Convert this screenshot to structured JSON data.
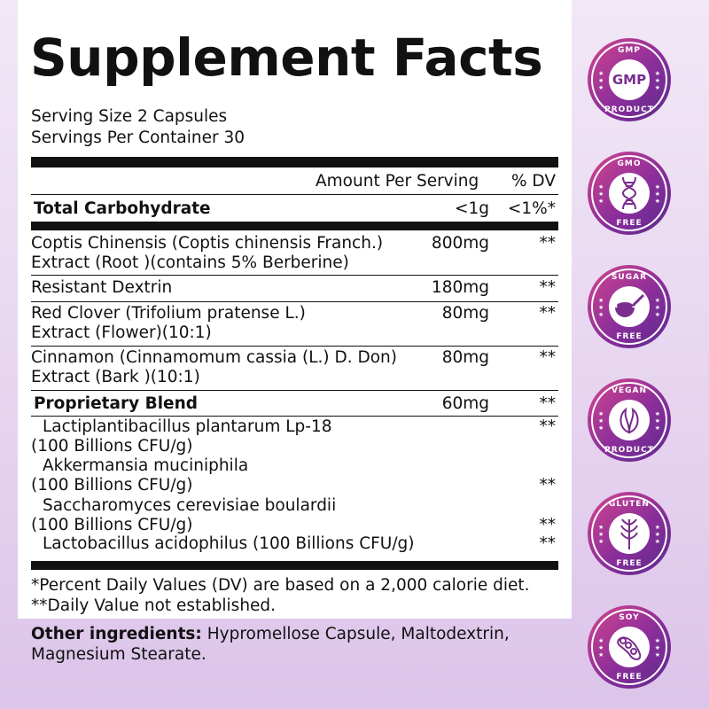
{
  "title": "Supplement Facts",
  "serving_size": "Serving Size 2 Capsules",
  "servings_per_container": "Servings Per Container 30",
  "header": {
    "amount": "Amount Per Serving",
    "dv": "% DV"
  },
  "total_carb": {
    "name": "Total Carbohydrate",
    "amount": "<1g",
    "dv": "<1%*"
  },
  "rows": [
    {
      "line1": "Coptis Chinensis (Coptis chinensis Franch.)",
      "line2": "Extract (Root )(contains 5% Berberine)",
      "amount": "800mg",
      "dv": "**"
    },
    {
      "line1": "Resistant Dextrin",
      "amount": "180mg",
      "dv": "**"
    },
    {
      "line1": "Red Clover (Trifolium pratense L.)",
      "line2": "Extract (Flower)(10:1)",
      "amount": "80mg",
      "dv": "**"
    },
    {
      "line1": "Cinnamon (Cinnamomum cassia (L.) D. Don)",
      "line2": "Extract (Bark )(10:1)",
      "amount": "80mg",
      "dv": "**"
    }
  ],
  "blend": {
    "name": "Proprietary Blend",
    "amount": "60mg",
    "dv": "**",
    "items": [
      {
        "line1": "Lactiplantibacillus plantarum Lp-18",
        "line2": "(100 Billions CFU/g)",
        "dv": "**"
      },
      {
        "line1": "Akkermansia muciniphila",
        "line2": "(100 Billions CFU/g)",
        "dv": "**"
      },
      {
        "line1": "Saccharomyces cerevisiae boulardii",
        "line2": "(100 Billions CFU/g)",
        "dv": "**"
      },
      {
        "line1": "Lactobacillus acidophilus (100 Billions CFU/g)",
        "dv": "**"
      }
    ]
  },
  "footnotes": [
    "*Percent Daily Values (DV) are based on a 2,000 calorie diet.",
    "**Daily Value not established."
  ],
  "other": {
    "label": "Other ingredients:",
    "line1": " Hypromellose Capsule, Maltodextrin,",
    "line2": "Magnesium Stearate."
  },
  "badges": [
    {
      "top": "GMP",
      "center": "GMP",
      "bottom": "PRODUCT",
      "icon": "gmp-text"
    },
    {
      "top": "GMO",
      "bottom": "FREE",
      "icon": "dna-icon"
    },
    {
      "top": "SUGAR",
      "bottom": "FREE",
      "icon": "sugar-spoon-icon"
    },
    {
      "top": "VEGAN",
      "bottom": "PRODUCT",
      "icon": "leaf-icon"
    },
    {
      "top": "GLUTEN",
      "bottom": "FREE",
      "icon": "wheat-icon"
    },
    {
      "top": "SOY",
      "bottom": "FREE",
      "icon": "soybean-icon"
    }
  ],
  "colors": {
    "badge_pink": "#d4468f",
    "badge_purple": "#5b2a8e"
  }
}
